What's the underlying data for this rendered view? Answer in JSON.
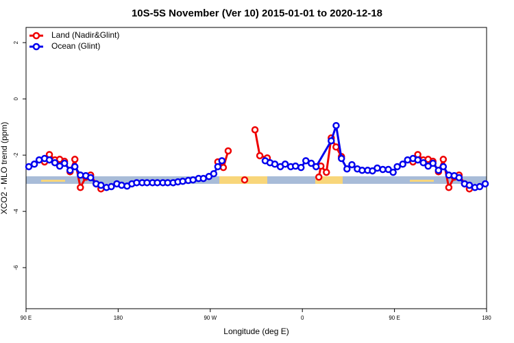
{
  "chart_data": {
    "type": "line",
    "title": "10S-5S November (Ver 10)   2015-01-01 to 2020-12-18",
    "x_label": "Longitude (deg E)",
    "y_label": "XCO2 - MLO trend (ppm)",
    "xlim": [
      90,
      540
    ],
    "xticks": [
      {
        "value": 90,
        "label": "90 E"
      },
      180,
      {
        "value": 270,
        "label": "90 W"
      },
      {
        "value": 360,
        "label": "0"
      },
      {
        "value": 450,
        "label": "90 E"
      },
      {
        "value": 540,
        "label": "180"
      }
    ],
    "ylim": [
      -7.46,
      2.54
    ],
    "yticks": [
      2,
      0,
      -2,
      -4,
      -6
    ],
    "legend": "top-left",
    "series": [
      {
        "name": "Land (Nadir&Glint)",
        "color": "#ee0000",
        "x": [
          108.1,
          112.8,
          118.2,
          122.9,
          127.6,
          133.0,
          137.7,
          143.1,
          148.4,
          153.1,
          158.5,
          163.2,
          220,
          277.4,
          282.8,
          287.5,
          295,
          303.6,
          308,
          313.7,
          318.4,
          325.7,
          350,
          376.1,
          378.1,
          383.5,
          388.2,
          392.9,
          398.2,
          430,
          468.1,
          472.8,
          478.2,
          482.9,
          487.6,
          493.0,
          497.7,
          503.1,
          508.4,
          513.1,
          518.5,
          523.2
        ],
        "values": [
          -2.24,
          -1.98,
          -2.17,
          -2.15,
          -2.22,
          -2.59,
          -2.15,
          -3.15,
          -2.78,
          -2.71,
          -3.02,
          -3.2,
          null,
          -2.24,
          -2.44,
          -1.85,
          null,
          -2.88,
          null,
          -1.1,
          -2.02,
          -2.1,
          null,
          -2.78,
          -2.39,
          -2.61,
          -1.39,
          -1.71,
          -2.05,
          null,
          -2.24,
          -1.98,
          -2.17,
          -2.15,
          -2.22,
          -2.59,
          -2.15,
          -3.15,
          -2.78,
          -2.71,
          -3.02,
          -3.2
        ]
      },
      {
        "name": "Ocean (Glint)",
        "color": "#0000ee",
        "x": [
          92.7,
          98.1,
          102.8,
          108.1,
          112.8,
          118.2,
          122.9,
          127.6,
          133.0,
          137.7,
          143.1,
          148.4,
          153.1,
          158.5,
          163.2,
          168.6,
          173.3,
          178.7,
          183.4,
          188.7,
          193.4,
          198.1,
          203.5,
          208.2,
          213.6,
          218.3,
          223.7,
          228.4,
          233.7,
          238.4,
          243.1,
          248.5,
          253.2,
          258.6,
          263.3,
          268.7,
          273.4,
          277.4,
          281.4,
          300,
          323.7,
          328.4,
          333.1,
          338.5,
          343.2,
          348.6,
          353.3,
          358.7,
          363.4,
          368.7,
          373.4,
          388.2,
          393.0,
          398.2,
          403.6,
          408.4,
          413.7,
          418.4,
          423.8,
          428.5,
          433.2,
          438.6,
          444.0,
          448.7,
          452.7,
          458.1,
          462.8,
          468.1,
          472.8,
          478.2,
          482.9,
          487.6,
          493.0,
          497.7,
          503.1,
          508.4,
          513.1,
          518.5,
          523.2,
          528.6,
          533.3,
          538.7
        ],
        "values": [
          -2.41,
          -2.32,
          -2.17,
          -2.12,
          -2.17,
          -2.27,
          -2.39,
          -2.29,
          -2.54,
          -2.41,
          -2.71,
          -2.73,
          -2.8,
          -3.02,
          -3.07,
          -3.15,
          -3.12,
          -3.02,
          -3.07,
          -3.1,
          -3.02,
          -2.98,
          -2.98,
          -2.98,
          -2.98,
          -2.98,
          -2.98,
          -2.98,
          -2.98,
          -2.95,
          -2.93,
          -2.9,
          -2.88,
          -2.83,
          -2.83,
          -2.76,
          -2.66,
          -2.41,
          -2.2,
          null,
          -2.2,
          -2.27,
          -2.32,
          -2.41,
          -2.32,
          -2.41,
          -2.39,
          -2.44,
          -2.2,
          -2.29,
          -2.41,
          -1.49,
          -0.95,
          -2.12,
          -2.49,
          -2.34,
          -2.49,
          -2.54,
          -2.54,
          -2.56,
          -2.46,
          -2.51,
          -2.51,
          -2.61,
          -2.41,
          -2.32,
          -2.17,
          -2.12,
          -2.17,
          -2.27,
          -2.39,
          -2.29,
          -2.54,
          -2.41,
          -2.71,
          -2.73,
          -2.8,
          -3.02,
          -3.07,
          -3.15,
          -3.12,
          -3.02
        ]
      }
    ]
  }
}
